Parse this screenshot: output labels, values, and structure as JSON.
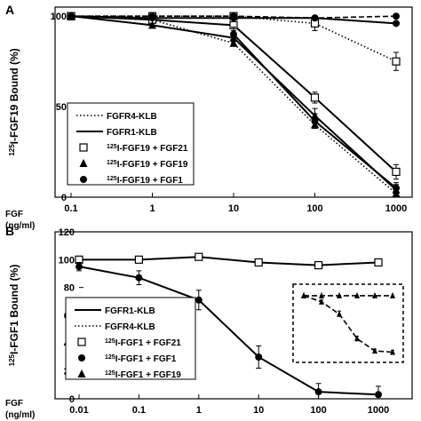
{
  "chart_data": [
    {
      "type": "line",
      "panel_label": "A",
      "ylabel": "125I-FGF19 Bound (%)",
      "ylabel_sup": "125",
      "ylabel_main": "I-FGF19 Bound (%)",
      "xlabel_line1": "FGF",
      "xlabel_line2": "(ng/ml)",
      "x_scale": "log",
      "xlim": [
        0.1,
        1000
      ],
      "ylim": [
        0,
        105
      ],
      "x_ticks": [
        "0.1",
        "1",
        "10",
        "100",
        "1000"
      ],
      "y_ticks": [
        "0",
        "50",
        "100"
      ],
      "legend": [
        {
          "text": "FGFR4-KLB",
          "sup": "",
          "symbol": "dotted-line"
        },
        {
          "text": "FGFR1-KLB",
          "sup": "",
          "symbol": "solid-line"
        },
        {
          "text": "I-FGF19 + FGF21",
          "sup": "125",
          "symbol": "open-square"
        },
        {
          "text": "I-FGF19 + FGF19",
          "sup": "125",
          "symbol": "filled-triangle"
        },
        {
          "text": "I-FGF19 + FGF1",
          "sup": "125",
          "symbol": "filled-circle"
        }
      ],
      "series": [
        {
          "receptor": "FGFR4-KLB",
          "ligand": "FGF21",
          "line": "dotted",
          "marker": "open-square",
          "x": [
            0.1,
            1,
            10,
            100,
            1000
          ],
          "y": [
            100,
            100,
            100,
            96,
            75
          ],
          "err": [
            0,
            0,
            0,
            4,
            5
          ]
        },
        {
          "receptor": "FGFR4-KLB",
          "ligand": "FGF1",
          "line": "dashed",
          "marker": "filled-circle",
          "x": [
            0.1,
            1,
            10,
            100,
            1000
          ],
          "y": [
            100,
            100,
            100,
            99,
            100
          ],
          "err": [
            0,
            0,
            0,
            0,
            0
          ]
        },
        {
          "receptor": "FGFR4-KLB",
          "ligand": "FGF19",
          "line": "dotted",
          "marker": "filled-triangle",
          "x": [
            0.1,
            1,
            10,
            100,
            1000
          ],
          "y": [
            100,
            98,
            85,
            40,
            2
          ],
          "err": [
            0,
            0,
            0,
            0,
            0
          ]
        },
        {
          "receptor": "FGFR1-KLB",
          "ligand": "FGF21",
          "line": "solid",
          "marker": "open-square",
          "x": [
            0.1,
            1,
            10,
            100,
            1000
          ],
          "y": [
            100,
            98,
            95,
            55,
            14
          ],
          "err": [
            0,
            0,
            0,
            3,
            4
          ]
        },
        {
          "receptor": "FGFR1-KLB",
          "ligand": "FGF1",
          "line": "solid",
          "marker": "filled-circle",
          "x": [
            0.1,
            1,
            10,
            100,
            1000
          ],
          "y": [
            100,
            99,
            99,
            99,
            96
          ],
          "err": [
            0,
            0,
            0,
            0,
            0
          ]
        },
        {
          "receptor": "FGFR1-KLB",
          "ligand": "FGF19",
          "line": "solid",
          "marker": "filled-triangle",
          "x": [
            0.1,
            1,
            10,
            100,
            1000
          ],
          "y": [
            100,
            95,
            88,
            45,
            4
          ],
          "err": [
            0,
            0,
            4,
            4,
            3
          ]
        },
        {
          "receptor": "FGFR1-KLB",
          "ligand": "FGF19",
          "line": "solid",
          "marker": "filled-circle",
          "x": [
            10,
            100,
            1000
          ],
          "y": [
            90,
            42,
            5
          ],
          "err": [
            4,
            4,
            3
          ]
        }
      ]
    },
    {
      "type": "line",
      "panel_label": "B",
      "ylabel": "125I-FGF1 Bound (%)",
      "ylabel_sup": "125",
      "ylabel_main": "I-FGF1 Bound (%)",
      "xlabel_line1": "FGF",
      "xlabel_line2": "(ng/ml)",
      "x_scale": "log",
      "xlim": [
        0.01,
        1000
      ],
      "ylim": [
        0,
        120
      ],
      "x_ticks": [
        "0.01",
        "0.1",
        "1",
        "10",
        "100",
        "1000"
      ],
      "y_ticks": [
        "0",
        "20",
        "40",
        "60",
        "80",
        "100",
        "120"
      ],
      "legend": [
        {
          "text": "FGFR1-KLB",
          "sup": "",
          "symbol": "solid-line"
        },
        {
          "text": "FGFR4-KLB",
          "sup": "",
          "symbol": "dotted-line"
        },
        {
          "text": "I-FGF1 + FGF21",
          "sup": "125",
          "symbol": "open-square"
        },
        {
          "text": "I-FGF1 + FGF1",
          "sup": "125",
          "symbol": "filled-circle"
        },
        {
          "text": "I-FGF1 + FGF19",
          "sup": "125",
          "symbol": "filled-triangle"
        }
      ],
      "series": [
        {
          "receptor": "FGFR1-KLB",
          "ligand": "FGF21",
          "line": "solid",
          "marker": "open-square",
          "x": [
            0.01,
            0.1,
            1,
            10,
            100,
            1000
          ],
          "y": [
            100,
            100,
            102,
            98,
            96,
            98
          ],
          "err": [
            0,
            0,
            0,
            0,
            0,
            0
          ]
        },
        {
          "receptor": "FGFR1-KLB",
          "ligand": "FGF1",
          "line": "solid",
          "marker": "filled-circle",
          "x": [
            0.01,
            0.1,
            1,
            10,
            100,
            1000
          ],
          "y": [
            95,
            87,
            71,
            30,
            5,
            3
          ],
          "err": [
            3,
            5,
            7,
            8,
            6,
            6
          ]
        }
      ],
      "inset": {
        "series": [
          {
            "line": "dashed",
            "marker": "filled-triangle",
            "y": [
              100,
              100,
              100,
              100,
              100,
              100
            ],
            "err": [
              0,
              0,
              0,
              0,
              0,
              0
            ]
          },
          {
            "line": "dashed",
            "marker": "filled-triangle",
            "y": [
              100,
              90,
              70,
              30,
              10,
              8
            ],
            "err": [
              0,
              3,
              5,
              4,
              3,
              3
            ]
          }
        ]
      }
    }
  ]
}
